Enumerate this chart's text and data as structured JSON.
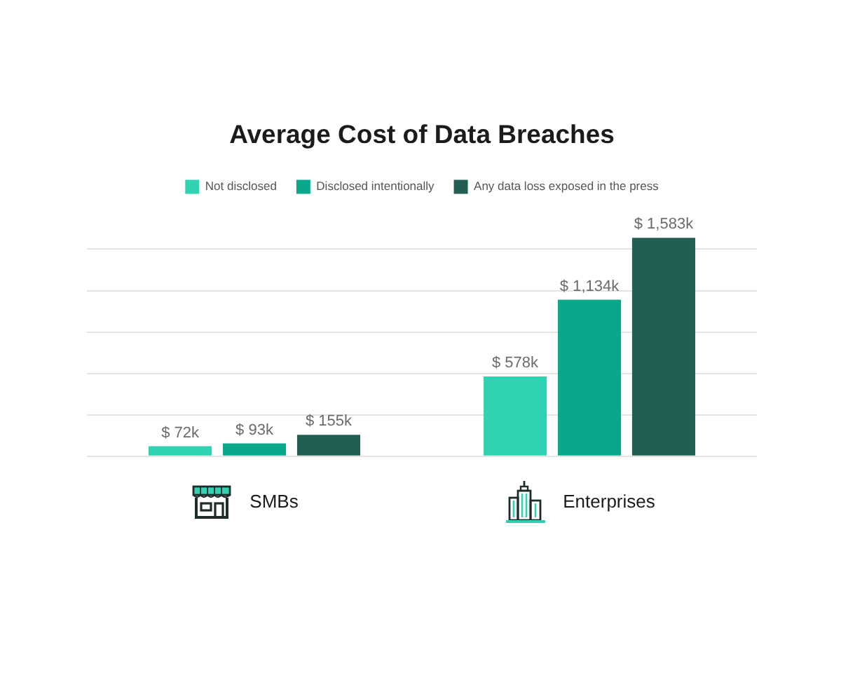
{
  "chart_data": {
    "type": "bar",
    "title": "Average Cost of Data Breaches",
    "categories": [
      "SMBs",
      "Enterprises"
    ],
    "series": [
      {
        "name": "Not disclosed",
        "color": "#2fd3b1",
        "values": [
          72,
          578
        ],
        "value_labels": [
          "$ 72k",
          "$ 578k"
        ]
      },
      {
        "name": "Disclosed intentionally",
        "color": "#0aa88b",
        "values": [
          93,
          1134
        ],
        "value_labels": [
          "$ 93k",
          "$ 1,134k"
        ]
      },
      {
        "name": "Any data loss exposed in the press",
        "color": "#235e52",
        "values": [
          155,
          1583
        ],
        "value_labels": [
          "$ 155k",
          "$ 1,583k"
        ]
      }
    ],
    "yticks": [
      {
        "value": 0,
        "label": null
      },
      {
        "value": 300,
        "label": null
      },
      {
        "value": 600,
        "label": null
      },
      {
        "value": 900,
        "label": null
      },
      {
        "value": 1200,
        "label": null
      },
      {
        "value": 1500,
        "label": null
      }
    ],
    "grid": "y",
    "legend": "top",
    "tick_labels": "x"
  }
}
